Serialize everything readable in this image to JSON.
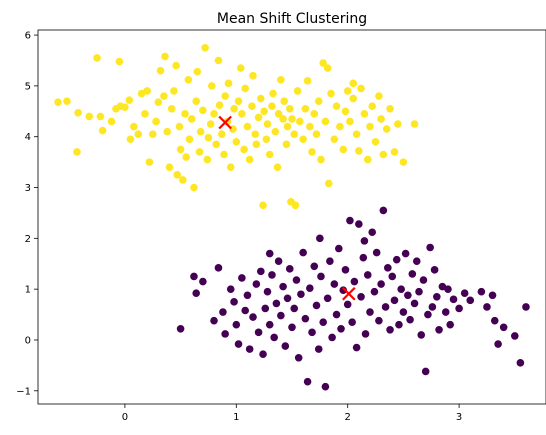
{
  "chart_data": {
    "type": "scatter",
    "title": "Mean Shift Clustering",
    "xlabel": "",
    "ylabel": "",
    "xlim": [
      -0.78,
      3.78
    ],
    "ylim": [
      -1.26,
      6.1
    ],
    "xticks": [
      0,
      1,
      2,
      3
    ],
    "yticks": [
      -1,
      0,
      1,
      2,
      3,
      4,
      5,
      6
    ],
    "grid": false,
    "legend": "none",
    "series": [
      {
        "color": "#fde725",
        "points": [
          [
            -0.6,
            4.68
          ],
          [
            -0.52,
            4.7
          ],
          [
            -0.43,
            3.7
          ],
          [
            -0.42,
            4.47
          ],
          [
            -0.32,
            4.4
          ],
          [
            -0.25,
            5.55
          ],
          [
            -0.22,
            4.4
          ],
          [
            -0.2,
            4.12
          ],
          [
            -0.12,
            4.3
          ],
          [
            -0.08,
            4.55
          ],
          [
            -0.05,
            5.48
          ],
          [
            -0.04,
            4.6
          ],
          [
            0.0,
            4.58
          ],
          [
            0.04,
            4.72
          ],
          [
            0.05,
            3.95
          ],
          [
            0.08,
            4.2
          ],
          [
            0.12,
            4.05
          ],
          [
            0.15,
            4.85
          ],
          [
            0.18,
            4.45
          ],
          [
            0.2,
            4.9
          ],
          [
            0.22,
            3.5
          ],
          [
            0.25,
            4.05
          ],
          [
            0.28,
            4.3
          ],
          [
            0.3,
            4.68
          ],
          [
            0.32,
            5.3
          ],
          [
            0.35,
            4.8
          ],
          [
            0.36,
            5.58
          ],
          [
            0.38,
            4.1
          ],
          [
            0.4,
            3.4
          ],
          [
            0.42,
            4.55
          ],
          [
            0.44,
            4.9
          ],
          [
            0.46,
            5.4
          ],
          [
            0.47,
            3.25
          ],
          [
            0.49,
            4.2
          ],
          [
            0.5,
            3.75
          ],
          [
            0.52,
            3.15
          ],
          [
            0.54,
            4.45
          ],
          [
            0.55,
            3.6
          ],
          [
            0.57,
            5.12
          ],
          [
            0.58,
            3.95
          ],
          [
            0.6,
            4.35
          ],
          [
            0.62,
            3.0
          ],
          [
            0.64,
            4.7
          ],
          [
            0.65,
            5.28
          ],
          [
            0.67,
            3.7
          ],
          [
            0.68,
            4.1
          ],
          [
            0.7,
            4.52
          ],
          [
            0.72,
            5.75
          ],
          [
            0.74,
            3.55
          ],
          [
            0.75,
            3.98
          ],
          [
            0.77,
            4.25
          ],
          [
            0.78,
            5.0
          ],
          [
            0.8,
            4.45
          ],
          [
            0.82,
            3.85
          ],
          [
            0.84,
            5.5
          ],
          [
            0.85,
            4.62
          ],
          [
            0.87,
            4.05
          ],
          [
            0.89,
            3.65
          ],
          [
            0.9,
            4.8
          ],
          [
            0.92,
            4.3
          ],
          [
            0.93,
            5.05
          ],
          [
            0.95,
            3.4
          ],
          [
            0.97,
            4.15
          ],
          [
            0.98,
            4.55
          ],
          [
            1.0,
            3.9
          ],
          [
            1.02,
            4.7
          ],
          [
            1.04,
            5.35
          ],
          [
            1.05,
            4.45
          ],
          [
            1.07,
            3.75
          ],
          [
            1.08,
            4.95
          ],
          [
            1.1,
            4.2
          ],
          [
            1.12,
            3.55
          ],
          [
            1.14,
            4.6
          ],
          [
            1.15,
            5.2
          ],
          [
            1.17,
            4.05
          ],
          [
            1.18,
            3.85
          ],
          [
            1.2,
            4.38
          ],
          [
            1.22,
            4.75
          ],
          [
            1.24,
            2.65
          ],
          [
            1.25,
            4.5
          ],
          [
            1.27,
            3.95
          ],
          [
            1.28,
            4.25
          ],
          [
            1.3,
            3.65
          ],
          [
            1.32,
            4.6
          ],
          [
            1.33,
            4.85
          ],
          [
            1.35,
            4.1
          ],
          [
            1.37,
            3.4
          ],
          [
            1.38,
            4.45
          ],
          [
            1.4,
            5.12
          ],
          [
            1.42,
            4.35
          ],
          [
            1.43,
            4.7
          ],
          [
            1.45,
            3.85
          ],
          [
            1.46,
            4.2
          ],
          [
            1.48,
            4.55
          ],
          [
            1.49,
            2.72
          ],
          [
            1.5,
            4.35
          ],
          [
            1.52,
            4.05
          ],
          [
            1.53,
            2.65
          ],
          [
            1.55,
            4.9
          ],
          [
            1.57,
            4.3
          ],
          [
            1.6,
            3.95
          ],
          [
            1.62,
            4.55
          ],
          [
            1.64,
            5.1
          ],
          [
            1.66,
            4.2
          ],
          [
            1.68,
            3.7
          ],
          [
            1.7,
            4.45
          ],
          [
            1.72,
            4.05
          ],
          [
            1.74,
            4.7
          ],
          [
            1.76,
            3.55
          ],
          [
            1.78,
            5.45
          ],
          [
            1.8,
            4.3
          ],
          [
            1.82,
            5.35
          ],
          [
            1.83,
            3.08
          ],
          [
            1.85,
            4.85
          ],
          [
            1.88,
            3.95
          ],
          [
            1.9,
            4.6
          ],
          [
            1.93,
            4.2
          ],
          [
            1.96,
            3.75
          ],
          [
            1.98,
            4.5
          ],
          [
            2.0,
            4.9
          ],
          [
            2.02,
            4.3
          ],
          [
            2.05,
            4.75
          ],
          [
            2.08,
            4.05
          ],
          [
            2.1,
            3.72
          ],
          [
            2.12,
            4.95
          ],
          [
            2.15,
            4.45
          ],
          [
            2.18,
            3.55
          ],
          [
            2.2,
            4.2
          ],
          [
            2.22,
            4.6
          ],
          [
            2.25,
            3.9
          ],
          [
            2.28,
            4.8
          ],
          [
            2.3,
            4.35
          ],
          [
            2.32,
            3.65
          ],
          [
            2.35,
            4.15
          ],
          [
            2.38,
            4.55
          ],
          [
            2.42,
            3.7
          ],
          [
            2.45,
            4.25
          ],
          [
            2.5,
            3.5
          ],
          [
            2.6,
            4.25
          ],
          [
            2.05,
            5.05
          ]
        ]
      },
      {
        "color": "#440154",
        "points": [
          [
            0.5,
            0.22
          ],
          [
            0.62,
            1.25
          ],
          [
            0.64,
            0.92
          ],
          [
            0.7,
            1.15
          ],
          [
            0.8,
            0.38
          ],
          [
            0.84,
            1.42
          ],
          [
            0.88,
            0.55
          ],
          [
            0.9,
            0.12
          ],
          [
            0.95,
            1.0
          ],
          [
            0.98,
            0.75
          ],
          [
            1.0,
            0.3
          ],
          [
            1.02,
            -0.08
          ],
          [
            1.05,
            1.22
          ],
          [
            1.08,
            0.58
          ],
          [
            1.1,
            0.88
          ],
          [
            1.12,
            -0.18
          ],
          [
            1.15,
            0.45
          ],
          [
            1.18,
            1.1
          ],
          [
            1.2,
            0.15
          ],
          [
            1.22,
            1.35
          ],
          [
            1.24,
            -0.28
          ],
          [
            1.26,
            0.62
          ],
          [
            1.28,
            0.95
          ],
          [
            1.3,
            0.3
          ],
          [
            1.32,
            1.28
          ],
          [
            1.34,
            0.05
          ],
          [
            1.36,
            0.72
          ],
          [
            1.38,
            1.55
          ],
          [
            1.4,
            0.48
          ],
          [
            1.42,
            1.05
          ],
          [
            1.44,
            -0.12
          ],
          [
            1.46,
            0.82
          ],
          [
            1.48,
            1.4
          ],
          [
            1.5,
            0.25
          ],
          [
            1.52,
            0.62
          ],
          [
            1.54,
            1.18
          ],
          [
            1.56,
            -0.35
          ],
          [
            1.58,
            0.9
          ],
          [
            1.6,
            1.72
          ],
          [
            1.62,
            0.42
          ],
          [
            1.64,
            -0.82
          ],
          [
            1.66,
            1.02
          ],
          [
            1.68,
            0.15
          ],
          [
            1.7,
            1.45
          ],
          [
            1.72,
            0.68
          ],
          [
            1.74,
            -0.18
          ],
          [
            1.76,
            1.25
          ],
          [
            1.78,
            0.35
          ],
          [
            1.8,
            -0.92
          ],
          [
            1.82,
            0.82
          ],
          [
            1.84,
            1.55
          ],
          [
            1.86,
            0.05
          ],
          [
            1.88,
            1.1
          ],
          [
            1.9,
            0.5
          ],
          [
            1.92,
            1.8
          ],
          [
            1.94,
            0.22
          ],
          [
            1.96,
            0.98
          ],
          [
            1.98,
            1.38
          ],
          [
            2.0,
            0.7
          ],
          [
            2.02,
            2.35
          ],
          [
            2.04,
            0.35
          ],
          [
            2.06,
            1.15
          ],
          [
            2.08,
            -0.15
          ],
          [
            2.1,
            2.28
          ],
          [
            2.12,
            0.85
          ],
          [
            2.14,
            1.62
          ],
          [
            2.16,
            0.12
          ],
          [
            2.18,
            1.28
          ],
          [
            2.2,
            0.55
          ],
          [
            2.22,
            2.12
          ],
          [
            2.24,
            0.95
          ],
          [
            2.26,
            1.72
          ],
          [
            2.28,
            0.38
          ],
          [
            2.3,
            1.1
          ],
          [
            2.32,
            2.55
          ],
          [
            2.34,
            0.65
          ],
          [
            2.36,
            1.42
          ],
          [
            2.38,
            0.2
          ],
          [
            2.4,
            1.25
          ],
          [
            2.42,
            0.78
          ],
          [
            2.44,
            1.58
          ],
          [
            2.46,
            0.3
          ],
          [
            2.48,
            1.0
          ],
          [
            2.5,
            0.55
          ],
          [
            2.52,
            1.7
          ],
          [
            2.54,
            0.88
          ],
          [
            2.56,
            0.4
          ],
          [
            2.58,
            1.3
          ],
          [
            2.6,
            0.72
          ],
          [
            2.62,
            1.55
          ],
          [
            2.64,
            0.95
          ],
          [
            2.66,
            0.1
          ],
          [
            2.68,
            1.18
          ],
          [
            2.7,
            -0.62
          ],
          [
            2.72,
            0.5
          ],
          [
            2.74,
            1.82
          ],
          [
            2.76,
            0.65
          ],
          [
            2.78,
            1.38
          ],
          [
            2.8,
            0.85
          ],
          [
            2.82,
            0.2
          ],
          [
            2.85,
            1.05
          ],
          [
            2.88,
            0.55
          ],
          [
            2.9,
            1.0
          ],
          [
            2.92,
            0.3
          ],
          [
            2.95,
            0.8
          ],
          [
            3.0,
            0.62
          ],
          [
            3.05,
            0.92
          ],
          [
            3.1,
            0.78
          ],
          [
            3.2,
            0.95
          ],
          [
            3.25,
            0.65
          ],
          [
            3.3,
            0.88
          ],
          [
            3.32,
            0.38
          ],
          [
            3.35,
            -0.08
          ],
          [
            3.4,
            0.25
          ],
          [
            3.5,
            0.08
          ],
          [
            3.55,
            -0.45
          ],
          [
            3.6,
            0.65
          ],
          [
            2.15,
            1.95
          ],
          [
            1.75,
            2.0
          ],
          [
            1.3,
            1.7
          ]
        ]
      }
    ],
    "centers": [
      [
        0.9,
        4.28
      ],
      [
        2.01,
        0.91
      ]
    ],
    "center_color": "#ff0000",
    "center_marker": "x"
  }
}
